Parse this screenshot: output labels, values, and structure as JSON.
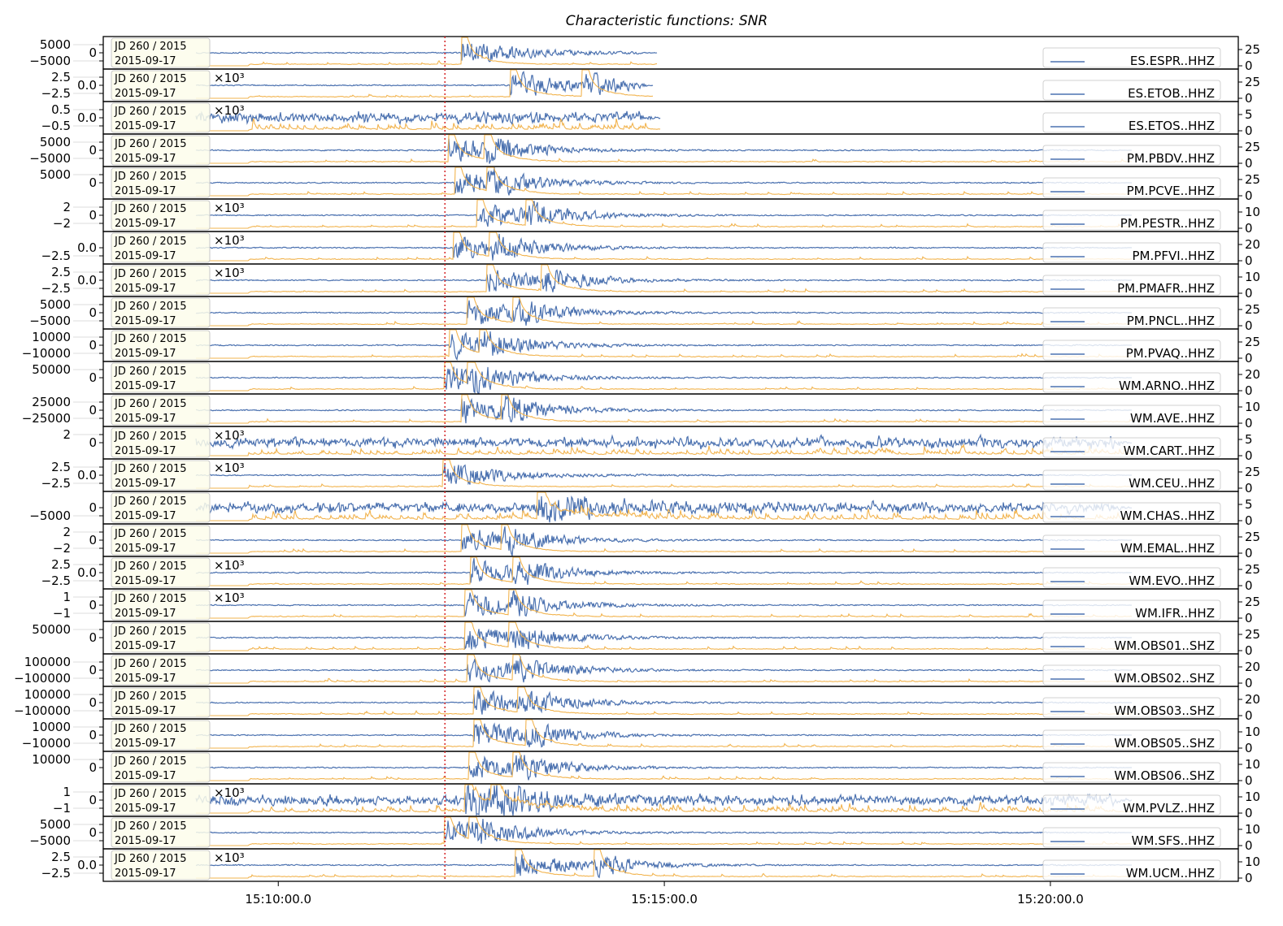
{
  "chart_data": {
    "type": "line",
    "title": "Characteristic functions: SNR",
    "date_box": [
      "JD 260 / 2015",
      "2015-09-17"
    ],
    "time_reference": "15:10:00",
    "xlim_seconds": [
      -136,
      746
    ],
    "xticks": [
      {
        "t": 0,
        "label": "15:10:00.0"
      },
      {
        "t": 300,
        "label": "15:15:00.0"
      },
      {
        "t": 600,
        "label": "15:20:00.0"
      }
    ],
    "reference_line_seconds": 129.5,
    "colors": {
      "trace": "#4c72b0",
      "cf": "#f2b44f",
      "reference_line": "#d62728",
      "date_box": "#fdfdeb"
    },
    "series": [
      {
        "name": "ES.ESPR..HHZ",
        "left_ticks": [
          "5000",
          "0",
          "−5000"
        ],
        "right_ticks": [
          "25",
          "0"
        ],
        "right_max": 25,
        "start": -64,
        "end": 294,
        "picks": [
          142
        ],
        "noisy": false
      },
      {
        "name": "ES.ETOB..HHZ",
        "offset_text": "×10³",
        "left_ticks": [
          "2.5",
          "0.0",
          "−2.5"
        ],
        "right_ticks": [
          "25",
          "0"
        ],
        "right_max": 25,
        "start": -64,
        "end": 291,
        "picks": [
          180,
          236
        ],
        "noisy": false
      },
      {
        "name": "ES.ETOS..HHZ",
        "offset_text": "×10³",
        "left_ticks": [
          "0.5",
          "0.0",
          "−0.5"
        ],
        "right_ticks": [
          "5",
          "0"
        ],
        "right_max": 5,
        "start": -64,
        "end": 297,
        "picks": [],
        "noisy": true
      },
      {
        "name": "PM.PBDV..HHZ",
        "left_ticks": [
          "5000",
          "0",
          "−5000"
        ],
        "right_ticks": [
          "25",
          "0"
        ],
        "right_max": 25,
        "start": -64,
        "end": 663,
        "picks": [
          132,
          160
        ],
        "noisy": false
      },
      {
        "name": "PM.PCVE..HHZ",
        "left_ticks": [
          "5000",
          "0"
        ],
        "right_ticks": [
          "25",
          "0"
        ],
        "right_max": 25,
        "start": -64,
        "end": 663,
        "picks": [
          137,
          162
        ],
        "noisy": false
      },
      {
        "name": "PM.PESTR..HHZ",
        "offset_text": "×10³",
        "left_ticks": [
          "2",
          "0",
          "−2"
        ],
        "right_ticks": [
          "10",
          "0"
        ],
        "right_max": 10,
        "start": -64,
        "end": 663,
        "picks": [
          154,
          192
        ],
        "noisy": false
      },
      {
        "name": "PM.PFVI..HHZ",
        "offset_text": "×10³",
        "left_ticks": [
          "0.0",
          "−2.5"
        ],
        "right_ticks": [
          "20",
          "0"
        ],
        "right_max": 20,
        "start": -64,
        "end": 663,
        "picks": [
          136,
          164
        ],
        "noisy": false
      },
      {
        "name": "PM.PMAFR..HHZ",
        "offset_text": "×10³",
        "left_ticks": [
          "2.5",
          "0.0",
          "−2.5"
        ],
        "right_ticks": [
          "10",
          "0"
        ],
        "right_max": 10,
        "start": -64,
        "end": 663,
        "picks": [
          162,
          204
        ],
        "noisy": false
      },
      {
        "name": "PM.PNCL..HHZ",
        "left_ticks": [
          "5000",
          "0",
          "−5000"
        ],
        "right_ticks": [
          "25",
          "0"
        ],
        "right_max": 25,
        "start": -64,
        "end": 663,
        "picks": [
          147,
          182
        ],
        "noisy": false
      },
      {
        "name": "PM.PVAQ..HHZ",
        "left_ticks": [
          "10000",
          "0",
          "−10000"
        ],
        "right_ticks": [
          "25",
          "0"
        ],
        "right_max": 25,
        "start": -64,
        "end": 663,
        "picks": [
          133,
          156
        ],
        "noisy": false
      },
      {
        "name": "WM.ARNO..HHZ",
        "left_ticks": [
          "50000",
          "0"
        ],
        "right_ticks": [
          "20",
          "0"
        ],
        "right_max": 20,
        "start": -64,
        "end": 663,
        "picks": [
          129,
          147
        ],
        "noisy": false
      },
      {
        "name": "WM.AVE..HHZ",
        "left_ticks": [
          "25000",
          "0",
          "−25000"
        ],
        "right_ticks": [
          "10",
          "0"
        ],
        "right_max": 10,
        "start": -64,
        "end": 663,
        "picks": [
          142,
          173
        ],
        "noisy": false
      },
      {
        "name": "WM.CART..HHZ",
        "offset_text": "×10³",
        "left_ticks": [
          "2",
          "0"
        ],
        "right_ticks": [
          "5",
          "0"
        ],
        "right_max": 5,
        "start": -64,
        "end": 663,
        "picks": [],
        "noisy": true
      },
      {
        "name": "WM.CEU..HHZ",
        "offset_text": "×10³",
        "left_ticks": [
          "2.5",
          "0.0",
          "−2.5"
        ],
        "right_ticks": [
          "25",
          "0"
        ],
        "right_max": 25,
        "start": -64,
        "end": 663,
        "picks": [
          128
        ],
        "noisy": false
      },
      {
        "name": "WM.CHAS..HHZ",
        "left_ticks": [
          "0",
          "−5000"
        ],
        "right_ticks": [
          "5",
          "0"
        ],
        "right_max": 5,
        "start": -64,
        "end": 663,
        "picks": [
          201
        ],
        "noisy": true
      },
      {
        "name": "WM.EMAL..HHZ",
        "left_ticks": [
          "2",
          "0",
          "−2"
        ],
        "right_ticks": [
          "25",
          "0"
        ],
        "right_max": 25,
        "start": -64,
        "end": 663,
        "picks": [
          142,
          173
        ],
        "noisy": false
      },
      {
        "name": "WM.EVO..HHZ",
        "offset_text": "×10³",
        "left_ticks": [
          "2.5",
          "0.0",
          "−2.5"
        ],
        "right_ticks": [
          "25",
          "0"
        ],
        "right_max": 25,
        "start": -64,
        "end": 663,
        "picks": [
          149,
          182
        ],
        "noisy": false
      },
      {
        "name": "WM.IFR..HHZ",
        "offset_text": "×10³",
        "left_ticks": [
          "1",
          "0",
          "−1"
        ],
        "right_ticks": [
          "25",
          "0"
        ],
        "right_max": 25,
        "start": -64,
        "end": 663,
        "picks": [
          145,
          179
        ],
        "noisy": false
      },
      {
        "name": "WM.OBS01..SHZ",
        "left_ticks": [
          "50000",
          "0"
        ],
        "right_ticks": [
          "25",
          "0"
        ],
        "right_max": 25,
        "start": -64,
        "end": 663,
        "picks": [
          145,
          179
        ],
        "noisy": false
      },
      {
        "name": "WM.OBS02..SHZ",
        "left_ticks": [
          "100000",
          "0",
          "−100000"
        ],
        "right_ticks": [
          "20",
          "0"
        ],
        "right_max": 20,
        "start": -64,
        "end": 663,
        "picks": [
          147,
          182
        ],
        "noisy": false
      },
      {
        "name": "WM.OBS03..SHZ",
        "left_ticks": [
          "100000",
          "0",
          "−100000"
        ],
        "right_ticks": [
          "20",
          "0"
        ],
        "right_max": 20,
        "start": -64,
        "end": 663,
        "picks": [
          152,
          186
        ],
        "noisy": false
      },
      {
        "name": "WM.OBS05..SHZ",
        "left_ticks": [
          "10000",
          "0",
          "−10000"
        ],
        "right_ticks": [
          "10",
          "0"
        ],
        "right_max": 10,
        "start": -64,
        "end": 663,
        "picks": [
          152,
          192
        ],
        "noisy": false
      },
      {
        "name": "WM.OBS06..SHZ",
        "left_ticks": [
          "10000",
          "0"
        ],
        "right_ticks": [
          "10",
          "0"
        ],
        "right_max": 10,
        "start": -64,
        "end": 663,
        "picks": [
          148,
          182
        ],
        "noisy": false
      },
      {
        "name": "WM.PVLZ..HHZ",
        "offset_text": "×10³",
        "left_ticks": [
          "1",
          "0",
          "−1"
        ],
        "right_ticks": [
          "10",
          "0"
        ],
        "right_max": 10,
        "start": -64,
        "end": 663,
        "picks": [
          145,
          165
        ],
        "noisy": true
      },
      {
        "name": "WM.SFS..HHZ",
        "left_ticks": [
          "5000",
          "0",
          "−5000"
        ],
        "right_ticks": [
          "10",
          "0"
        ],
        "right_max": 10,
        "start": -64,
        "end": 663,
        "picks": [
          129,
          148
        ],
        "noisy": false
      },
      {
        "name": "WM.UCM..HHZ",
        "offset_text": "×10³",
        "left_ticks": [
          "2.5",
          "0.0",
          "−2.5"
        ],
        "right_ticks": [
          "10",
          "0"
        ],
        "right_max": 10,
        "start": -64,
        "end": 663,
        "picks": [
          184,
          245
        ],
        "noisy": false
      }
    ]
  }
}
